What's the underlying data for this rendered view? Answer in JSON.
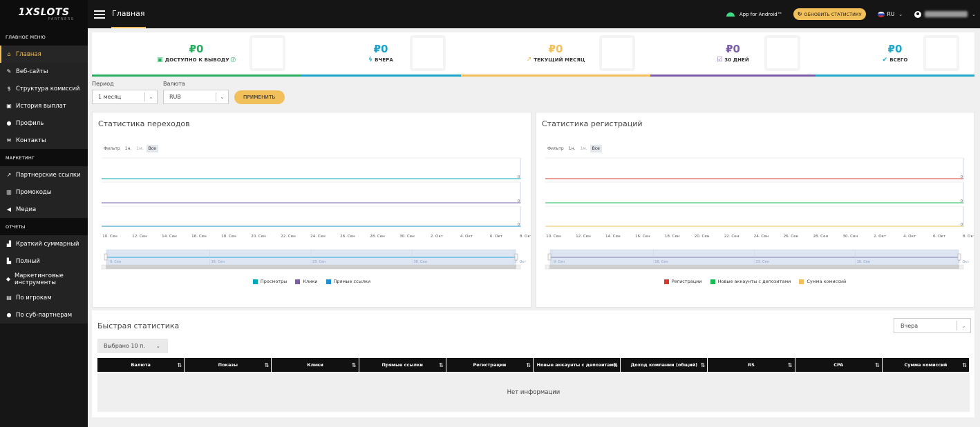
{
  "brand": {
    "logo_text": "1XSLOTS",
    "logo_sub": "PARTNERS"
  },
  "topbar": {
    "page_title": "Главная",
    "android_label": "App for Android™",
    "refresh_label": "ОБНОВИТЬ СТАТИСТИКУ",
    "lang": "RU"
  },
  "sidebar": {
    "sections": [
      {
        "title": "ГЛАВНОЕ МЕНЮ",
        "items": [
          {
            "label": "Главная",
            "icon": "home-icon",
            "glyph": "⌂",
            "active": true
          },
          {
            "label": "Веб-сайты",
            "icon": "globe-icon",
            "glyph": "✎"
          },
          {
            "label": "Структура комиссий",
            "icon": "dollar-icon",
            "glyph": "$"
          },
          {
            "label": "История выплат",
            "icon": "money-icon",
            "glyph": "▣"
          },
          {
            "label": "Профиль",
            "icon": "user-icon",
            "glyph": "●"
          },
          {
            "label": "Контакты",
            "icon": "envelope-icon",
            "glyph": "✉"
          }
        ]
      },
      {
        "title": "МАРКЕТИНГ",
        "items": [
          {
            "label": "Партнерские ссылки",
            "icon": "external-link-icon",
            "glyph": "↗"
          },
          {
            "label": "Промокоды",
            "icon": "barcode-icon",
            "glyph": "▥"
          },
          {
            "label": "Медиа",
            "icon": "bullhorn-icon",
            "glyph": "◀"
          }
        ]
      },
      {
        "title": "ОТЧЕТЫ",
        "items": [
          {
            "label": "Краткий суммарный",
            "icon": "chart-icon",
            "glyph": "▟"
          },
          {
            "label": "Полный",
            "icon": "bar-chart-icon",
            "glyph": "▙"
          },
          {
            "label": "Маркетинговые инструменты",
            "icon": "tools-icon",
            "glyph": "◆",
            "tall": true
          },
          {
            "label": "По игрокам",
            "icon": "id-card-icon",
            "glyph": "▤"
          },
          {
            "label": "По суб-партнерам",
            "icon": "users-icon",
            "glyph": "●"
          }
        ]
      }
    ]
  },
  "cards": [
    {
      "amount": "₽0",
      "label": "ДОСТУПНО К ВЫВОДУ",
      "color": "#27ae60",
      "icon": "cash-icon",
      "glyph": "▣",
      "info": "ⓘ"
    },
    {
      "amount": "₽0",
      "label": "ВЧЕРА",
      "color": "#1aa3c9",
      "icon": "bolt-icon",
      "glyph": "ϟ"
    },
    {
      "amount": "₽0",
      "label": "ТЕКУЩИЙ МЕСЯЦ",
      "color": "#f2c05b",
      "icon": "trend-icon",
      "glyph": "↗"
    },
    {
      "amount": "₽0",
      "label": "30 ДНЕЙ",
      "color": "#7b5ea7",
      "icon": "calendar-check-icon",
      "glyph": "☑"
    },
    {
      "amount": "₽0",
      "label": "ВСЕГО",
      "color": "#20a8c9",
      "icon": "check-icon",
      "glyph": "✔"
    }
  ],
  "filters": {
    "period_label": "Период",
    "period_value": "1 месяц",
    "currency_label": "Валюта",
    "currency_value": "RUB",
    "apply_label": "ПРИМЕНИТЬ"
  },
  "chart_data": [
    {
      "type": "line",
      "title": "Статистика переходов",
      "filter_label": "Фильтр",
      "filter_options": [
        "1н.",
        "1м.",
        "Все"
      ],
      "x": [
        "10. Сен",
        "12. Сен",
        "14. Сен",
        "16. Сен",
        "18. Сен",
        "20. Сен",
        "22. Сен",
        "24. Сен",
        "26. Сен",
        "28. Сен",
        "30. Сен",
        "2. Окт",
        "4. Окт",
        "6. Окт",
        "8. Окт"
      ],
      "navigator_labels": [
        "9. Сен",
        "16. Сен",
        "23. Сен",
        "30. Сен",
        "7. Окт"
      ],
      "series": [
        {
          "name": "Просмотры",
          "color": "#00a8b8",
          "value": 0
        },
        {
          "name": "Клики",
          "color": "#7b5ea7",
          "value": 0
        },
        {
          "name": "Прямые ссылки",
          "color": "#1f8fd3",
          "value": 0
        }
      ]
    },
    {
      "type": "line",
      "title": "Статистика регистраций",
      "filter_label": "Фильтр",
      "filter_options": [
        "1н.",
        "1м.",
        "Все"
      ],
      "x": [
        "10. Сен",
        "12. Сен",
        "14. Сен",
        "16. Сен",
        "18. Сен",
        "20. Сен",
        "22. Сен",
        "24. Сен",
        "26. Сен",
        "28. Сен",
        "30. Сен",
        "2. Окт",
        "4. Окт",
        "6. Окт",
        "8. Окт"
      ],
      "navigator_labels": [
        "9. Сен",
        "16. Сен",
        "23. Сен",
        "30. Сен",
        "7. Окт"
      ],
      "series": [
        {
          "name": "Регистрации",
          "color": "#d33b2c",
          "value": 0
        },
        {
          "name": "Новые аккаунты с депозитами",
          "color": "#1db954",
          "value": 0
        },
        {
          "name": "Сумма комиссий",
          "color": "#f2c05b",
          "value": 0
        }
      ]
    }
  ],
  "quick_stats": {
    "title": "Быстрая статистика",
    "period_value": "Вчера",
    "columns_selected": "Выбрано 10 п.",
    "columns": [
      "Валюта",
      "Показы",
      "Клики",
      "Прямые ссылки",
      "Регистрации",
      "Новые аккаунты с депозитами",
      "Доход компании (общий)",
      "RS",
      "CPA",
      "Сумма комиссий"
    ],
    "empty_text": "Нет информации"
  }
}
